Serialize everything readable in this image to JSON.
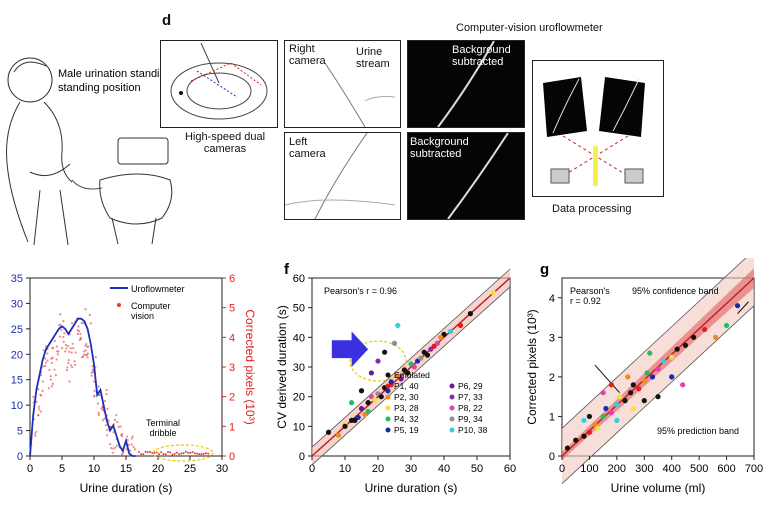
{
  "top": {
    "left_label": "Male urination\nstanding position",
    "panel_d": {
      "letter": "d",
      "hs_caption": "High-speed dual\ncameras",
      "right_camera": "Right\ncamera",
      "urine_stream": "Urine\nstream",
      "left_camera": "Left\ncamera",
      "bg1": "Background\nsubtracted",
      "bg2": "Background\nsubtracted",
      "cv_title": "Computer-vision uroflowmeter",
      "data_processing": "Data processing"
    }
  },
  "charts": [
    {
      "id": "e",
      "type": "line",
      "xlabel": "Urine duration (s)",
      "ylabel_right": "Corrected pixels (10³)",
      "x_ticks": [
        0,
        5,
        10,
        15,
        20,
        25,
        30
      ],
      "y_left_ticks": [
        0,
        5,
        10,
        15,
        20,
        25,
        30,
        35
      ],
      "y_right_ticks": [
        0,
        1,
        2,
        3,
        4,
        5,
        6
      ],
      "legend": {
        "line": "Uroflowmeter",
        "points": "Computer\nvision"
      },
      "annotation": "Terminal\ndribble",
      "colors": {
        "line": "#1c2fb8",
        "points": "#e0403a",
        "right_axis": "#e02020"
      },
      "series": [
        {
          "name": "Uroflowmeter",
          "x": [
            0,
            0.5,
            1,
            1.5,
            2,
            2.5,
            3,
            3.5,
            4,
            4.5,
            5,
            5.5,
            6,
            6.5,
            7,
            7.5,
            8,
            8.5,
            9,
            9.5,
            10,
            10.5,
            11,
            11.5,
            12,
            12.5,
            13,
            13.5,
            14,
            14.5,
            15,
            15.5,
            16,
            16.5
          ],
          "y": [
            0,
            8,
            13,
            16,
            19,
            21,
            22,
            23,
            24,
            25,
            25.5,
            25,
            24,
            25,
            26,
            27,
            27,
            26.5,
            25,
            22,
            18,
            12,
            13,
            10,
            7,
            5,
            6,
            4,
            2,
            1,
            3,
            0.5,
            0,
            0
          ]
        }
      ]
    },
    {
      "id": "f",
      "type": "scatter",
      "letter": "f",
      "xlabel": "Urine duration (s)",
      "ylabel": "CV derived duration (s)",
      "x_ticks": [
        0,
        10,
        20,
        30,
        40,
        50,
        60
      ],
      "y_ticks": [
        0,
        10,
        20,
        30,
        40,
        50,
        60
      ],
      "xlim": [
        0,
        60
      ],
      "ylim": [
        0,
        60
      ],
      "annotation": "Pearson's r = 0.96",
      "legend": [
        {
          "label": "Emulated",
          "color": "#111111"
        },
        {
          "label": "P1, 40",
          "color": "#e02020"
        },
        {
          "label": "P2, 30",
          "color": "#f08a20"
        },
        {
          "label": "P3, 28",
          "color": "#f0e040"
        },
        {
          "label": "P4, 32",
          "color": "#20c060"
        },
        {
          "label": "P5, 19",
          "color": "#1a2aa8"
        },
        {
          "label": "P6, 29",
          "color": "#6a1a9a"
        },
        {
          "label": "P7, 33",
          "color": "#8a2ab0"
        },
        {
          "label": "P8, 22",
          "color": "#e040b0"
        },
        {
          "label": "P9, 34",
          "color": "#909090"
        },
        {
          "label": "P10, 38",
          "color": "#30d0e0"
        }
      ],
      "points": [
        [
          5,
          8
        ],
        [
          8,
          7
        ],
        [
          10,
          11
        ],
        [
          12,
          12
        ],
        [
          14,
          13
        ],
        [
          15,
          16
        ],
        [
          17,
          18
        ],
        [
          18,
          20
        ],
        [
          20,
          21
        ],
        [
          22,
          23
        ],
        [
          24,
          24
        ],
        [
          26,
          27
        ],
        [
          28,
          29
        ],
        [
          30,
          31
        ],
        [
          32,
          32
        ],
        [
          34,
          35
        ],
        [
          36,
          36
        ],
        [
          38,
          38
        ],
        [
          40,
          41
        ],
        [
          42,
          42
        ],
        [
          45,
          44
        ],
        [
          48,
          48
        ],
        [
          55,
          55
        ],
        [
          12,
          18
        ],
        [
          15,
          22
        ],
        [
          18,
          28
        ],
        [
          20,
          32
        ],
        [
          22,
          35
        ],
        [
          25,
          38
        ],
        [
          26,
          44
        ],
        [
          10,
          10
        ],
        [
          16,
          14
        ],
        [
          19,
          19
        ],
        [
          21,
          20
        ],
        [
          23,
          22
        ],
        [
          27,
          26
        ],
        [
          29,
          28
        ],
        [
          31,
          30
        ],
        [
          33,
          33
        ],
        [
          35,
          34
        ],
        [
          37,
          37
        ],
        [
          39,
          40
        ],
        [
          13,
          12
        ],
        [
          17,
          15
        ],
        [
          24,
          25
        ]
      ]
    },
    {
      "id": "g",
      "type": "scatter",
      "letter": "g",
      "xlabel": "Urine volume (ml)",
      "ylabel": "Corrected pixels (10³)",
      "x_ticks": [
        0,
        100,
        200,
        300,
        400,
        500,
        600,
        700
      ],
      "y_ticks": [
        0,
        1,
        2,
        3,
        4
      ],
      "xlim": [
        0,
        700
      ],
      "ylim": [
        0,
        4.5
      ],
      "annotation": "Pearson's\nr = 0.92",
      "band1": "95% confidence band",
      "band2": "95% prediction band",
      "points": [
        [
          20,
          0.2
        ],
        [
          50,
          0.4
        ],
        [
          80,
          0.5
        ],
        [
          100,
          0.6
        ],
        [
          120,
          0.8
        ],
        [
          150,
          1.0
        ],
        [
          160,
          1.2
        ],
        [
          180,
          1.1
        ],
        [
          200,
          1.3
        ],
        [
          210,
          1.5
        ],
        [
          230,
          1.4
        ],
        [
          250,
          1.6
        ],
        [
          260,
          1.8
        ],
        [
          280,
          1.7
        ],
        [
          300,
          1.9
        ],
        [
          310,
          2.1
        ],
        [
          330,
          2.0
        ],
        [
          350,
          2.2
        ],
        [
          370,
          2.4
        ],
        [
          400,
          2.5
        ],
        [
          420,
          2.7
        ],
        [
          450,
          2.8
        ],
        [
          480,
          3.0
        ],
        [
          520,
          3.2
        ],
        [
          560,
          3.0
        ],
        [
          600,
          3.3
        ],
        [
          640,
          3.8
        ],
        [
          150,
          1.6
        ],
        [
          200,
          0.9
        ],
        [
          260,
          1.2
        ],
        [
          300,
          1.4
        ],
        [
          350,
          1.5
        ],
        [
          100,
          1.0
        ],
        [
          180,
          1.8
        ],
        [
          240,
          2.0
        ],
        [
          320,
          2.6
        ],
        [
          400,
          2.0
        ],
        [
          440,
          1.8
        ],
        [
          80,
          0.9
        ],
        [
          130,
          0.7
        ]
      ]
    }
  ]
}
